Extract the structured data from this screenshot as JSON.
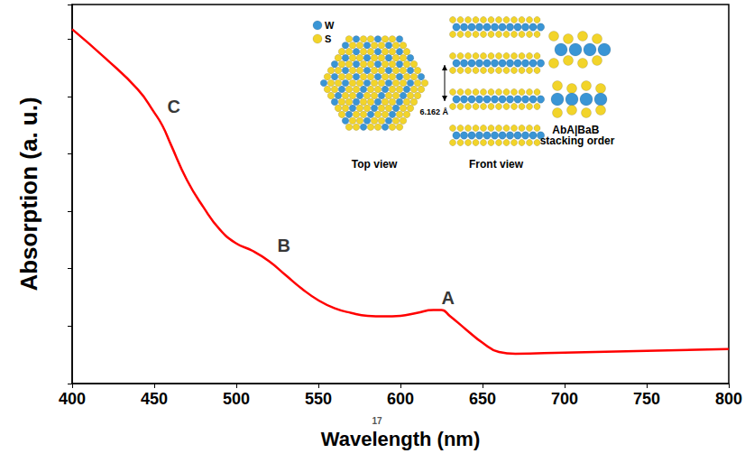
{
  "chart_data": {
    "type": "line",
    "xlabel": "Wavelength (nm)",
    "ylabel": "Absorption (a. u.)",
    "x": [
      400,
      420,
      440,
      450,
      455,
      460,
      470,
      480,
      490,
      500,
      510,
      520,
      530,
      540,
      550,
      560,
      570,
      580,
      590,
      600,
      610,
      620,
      625,
      630,
      640,
      650,
      660,
      670,
      700,
      750,
      800
    ],
    "values": [
      6.17,
      5.67,
      5.12,
      4.72,
      4.49,
      4.17,
      3.54,
      3.07,
      2.68,
      2.44,
      2.31,
      2.13,
      1.89,
      1.65,
      1.45,
      1.31,
      1.23,
      1.18,
      1.17,
      1.18,
      1.23,
      1.28,
      1.28,
      1.18,
      0.94,
      0.71,
      0.55,
      0.52,
      0.54,
      0.57,
      0.6
    ],
    "color": "#ff0000",
    "xlim": [
      400,
      800
    ],
    "xticks": [
      400,
      450,
      500,
      550,
      600,
      650,
      700,
      750,
      800
    ],
    "ylim": [
      0,
      6.6
    ],
    "yticks": [
      0,
      1,
      2,
      3,
      4,
      5,
      6
    ],
    "tick_labels": "x",
    "grid": false,
    "annotations": [
      {
        "text": "A",
        "x": 629,
        "y": 1.5
      },
      {
        "text": "B",
        "x": 529,
        "y": 2.41
      },
      {
        "text": "C",
        "x": 462,
        "y": 4.83
      }
    ],
    "inset": {
      "legend_items": [
        {
          "label": "W",
          "color": "#3a95d5"
        },
        {
          "label": "S",
          "color": "#f2d42a"
        }
      ],
      "views": [
        "Top view",
        "Front view",
        "AbA|BaB stacking order"
      ],
      "spacing_label": "6.162 Å"
    },
    "footer": "17"
  }
}
